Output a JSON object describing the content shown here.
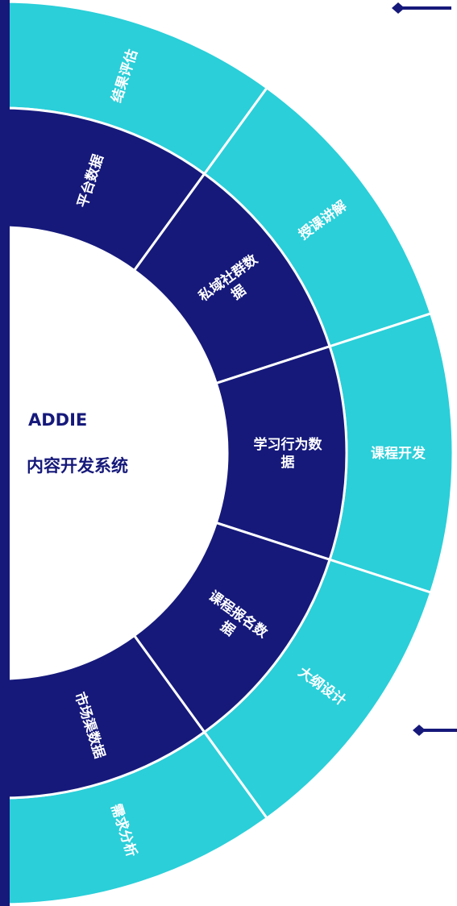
{
  "center": {
    "title": "ADDIE",
    "subtitle": "内容开发系统"
  },
  "outer_ring": {
    "segments": [
      {
        "label": [
          "结果评估"
        ]
      },
      {
        "label": [
          "授课讲解"
        ]
      },
      {
        "label": [
          "课程开发"
        ]
      },
      {
        "label": [
          "大纲设计"
        ]
      },
      {
        "label": [
          "需求分析"
        ]
      }
    ]
  },
  "inner_ring": {
    "segments": [
      {
        "label": [
          "平台数据"
        ]
      },
      {
        "label": [
          "私域社群数",
          "据"
        ]
      },
      {
        "label": [
          "学习行为数",
          "据"
        ]
      },
      {
        "label": [
          "课程报名数",
          "据"
        ]
      },
      {
        "label": [
          "市场渠数据"
        ]
      }
    ]
  }
}
